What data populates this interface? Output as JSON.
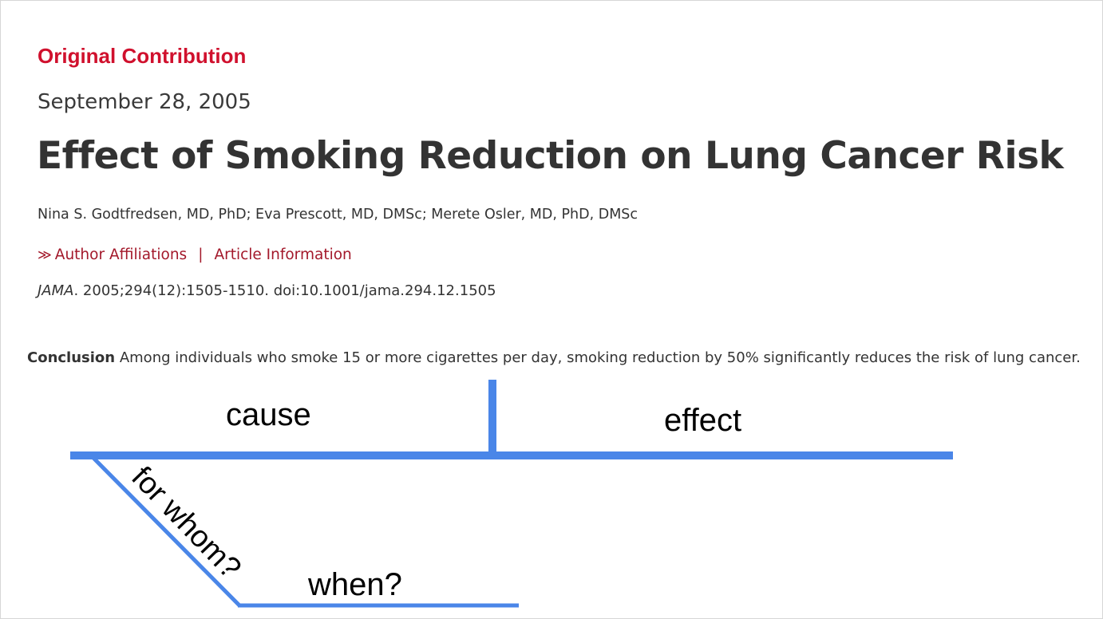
{
  "article": {
    "section": "Original Contribution",
    "date": "September 28, 2005",
    "title": "Effect of Smoking Reduction on Lung Cancer Risk",
    "authors": "Nina S. Godtfredsen, MD, PhD; Eva Prescott, MD, DMSc; Merete Osler, MD, PhD, DMSc",
    "links": {
      "affiliations": "Author Affiliations",
      "separator": "|",
      "info": "Article Information"
    },
    "citation": {
      "journal": "JAMA",
      "rest": ". 2005;294(12):1505-1510. doi:10.1001/jama.294.12.1505"
    },
    "conclusion": {
      "label": "Conclusion",
      "text": " Among individuals who smoke 15 or more cigarettes per day, smoking reduction by 50% significantly reduces the risk of lung cancer."
    }
  },
  "diagram": {
    "line_color": "#4a86e8",
    "labels": {
      "cause": "cause",
      "effect": "effect",
      "for_whom": "for whom?",
      "when": "when?"
    }
  },
  "colors": {
    "accent_red": "#d0102d",
    "link_red": "#a3182a",
    "text": "#333333"
  }
}
